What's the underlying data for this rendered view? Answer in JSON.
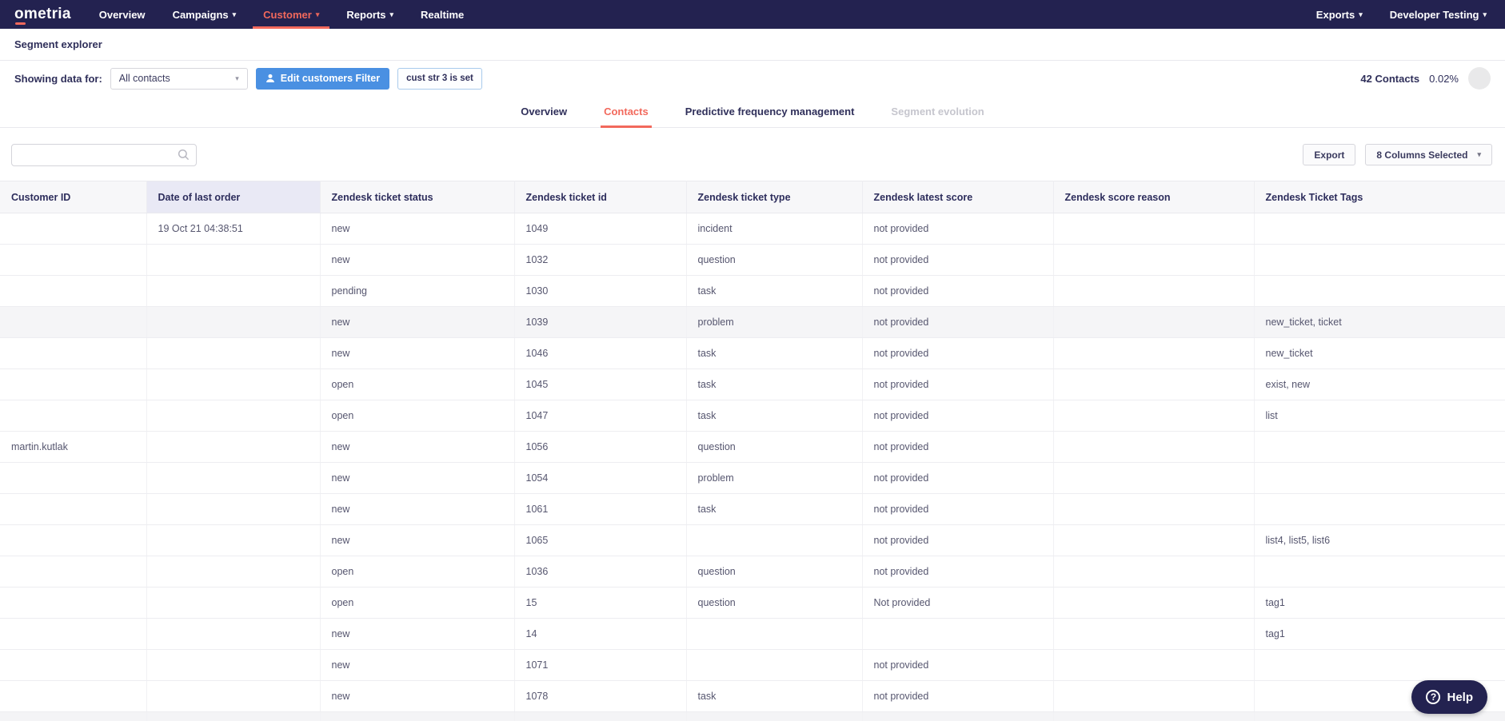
{
  "nav": {
    "logo": "ometria",
    "left_items": [
      {
        "label": "Overview",
        "dropdown": false,
        "active": false
      },
      {
        "label": "Campaigns",
        "dropdown": true,
        "active": false
      },
      {
        "label": "Customer",
        "dropdown": true,
        "active": true
      },
      {
        "label": "Reports",
        "dropdown": true,
        "active": false
      },
      {
        "label": "Realtime",
        "dropdown": false,
        "active": false
      }
    ],
    "right_items": [
      {
        "label": "Exports",
        "dropdown": true
      },
      {
        "label": "Developer Testing",
        "dropdown": true
      }
    ]
  },
  "page": {
    "title": "Segment explorer"
  },
  "filter_bar": {
    "label": "Showing data for:",
    "segment_select_value": "All contacts",
    "edit_button_label": "Edit customers Filter",
    "filter_chip": "cust str 3 is set",
    "contacts_count": "42 Contacts",
    "contacts_percent": "0.02%"
  },
  "tabs": [
    {
      "label": "Overview",
      "state": "normal"
    },
    {
      "label": "Contacts",
      "state": "active"
    },
    {
      "label": "Predictive frequency management",
      "state": "normal"
    },
    {
      "label": "Segment evolution",
      "state": "disabled"
    }
  ],
  "toolbar": {
    "search_value": "",
    "search_placeholder": "",
    "export_button": "Export",
    "columns_button": "8 Columns Selected"
  },
  "table": {
    "columns": [
      "Customer ID",
      "Date of last order",
      "Zendesk ticket status",
      "Zendesk ticket id",
      "Zendesk ticket type",
      "Zendesk latest score",
      "Zendesk score reason",
      "Zendesk Ticket Tags"
    ],
    "highlighted_column_index": 1,
    "gray_row_indexes": [
      3
    ],
    "has_partial_bottom_row": true,
    "rows": [
      [
        "",
        "19 Oct 21 04:38:51",
        "new",
        "1049",
        "incident",
        "not provided",
        "",
        ""
      ],
      [
        "",
        "",
        "new",
        "1032",
        "question",
        "not provided",
        "",
        ""
      ],
      [
        "",
        "",
        "pending",
        "1030",
        "task",
        "not provided",
        "",
        ""
      ],
      [
        "",
        "",
        "new",
        "1039",
        "problem",
        "not provided",
        "",
        "new_ticket, ticket"
      ],
      [
        "",
        "",
        "new",
        "1046",
        "task",
        "not provided",
        "",
        "new_ticket"
      ],
      [
        "",
        "",
        "open",
        "1045",
        "task",
        "not provided",
        "",
        "exist, new"
      ],
      [
        "",
        "",
        "open",
        "1047",
        "task",
        "not provided",
        "",
        "list"
      ],
      [
        "martin.kutlak",
        "",
        "new",
        "1056",
        "question",
        "not provided",
        "",
        ""
      ],
      [
        "",
        "",
        "new",
        "1054",
        "problem",
        "not provided",
        "",
        ""
      ],
      [
        "",
        "",
        "new",
        "1061",
        "task",
        "not provided",
        "",
        ""
      ],
      [
        "",
        "",
        "new",
        "1065",
        "",
        "not provided",
        "",
        "list4, list5, list6"
      ],
      [
        "",
        "",
        "open",
        "1036",
        "question",
        "not provided",
        "",
        ""
      ],
      [
        "",
        "",
        "open",
        "15",
        "question",
        "Not provided",
        "",
        "tag1"
      ],
      [
        "",
        "",
        "new",
        "14",
        "",
        "",
        "",
        "tag1"
      ],
      [
        "",
        "",
        "new",
        "1071",
        "",
        "not provided",
        "",
        ""
      ],
      [
        "",
        "",
        "new",
        "1078",
        "task",
        "not provided",
        "",
        ""
      ]
    ]
  },
  "help": {
    "label": "Help"
  },
  "colors": {
    "nav_background": "#232250",
    "accent_red": "#f2695c",
    "accent_blue": "#4a90e2",
    "header_highlight": "#e9e9f5",
    "gray_row": "#f5f5f7"
  }
}
